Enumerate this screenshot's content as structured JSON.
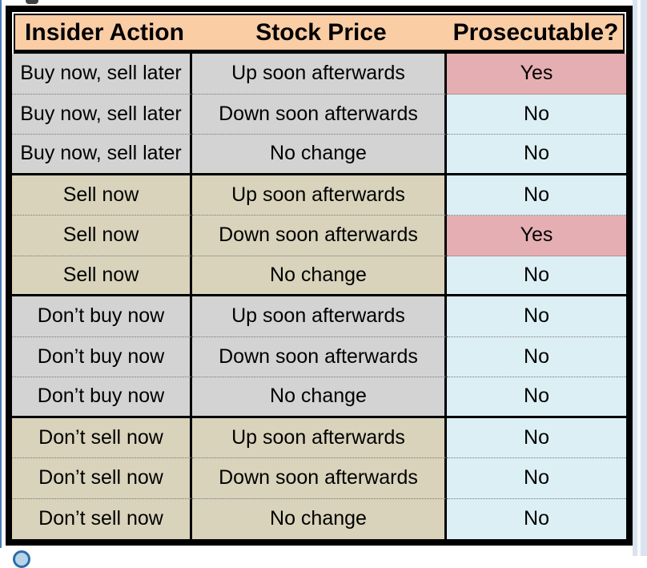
{
  "page": {
    "top_artifact": "cropped-text-fragment",
    "bottom_left_icon": "circle-badge-icon"
  },
  "table": {
    "headers": [
      "Insider Action",
      "Stock Price",
      "Prosecutable?"
    ],
    "rows": [
      {
        "action": "Buy now, sell later",
        "stock_price": "Up soon afterwards",
        "prosecutable": "Yes"
      },
      {
        "action": "Buy now, sell later",
        "stock_price": "Down soon afterwards",
        "prosecutable": "No"
      },
      {
        "action": "Buy now, sell later",
        "stock_price": "No change",
        "prosecutable": "No"
      },
      {
        "action": "Sell now",
        "stock_price": "Up soon afterwards",
        "prosecutable": "No"
      },
      {
        "action": "Sell now",
        "stock_price": "Down soon afterwards",
        "prosecutable": "Yes"
      },
      {
        "action": "Sell now",
        "stock_price": "No change",
        "prosecutable": "No"
      },
      {
        "action": "Don’t buy now",
        "stock_price": "Up soon afterwards",
        "prosecutable": "No"
      },
      {
        "action": "Don’t buy now",
        "stock_price": "Down soon afterwards",
        "prosecutable": "No"
      },
      {
        "action": "Don’t buy now",
        "stock_price": "No change",
        "prosecutable": "No"
      },
      {
        "action": "Don’t sell now",
        "stock_price": "Up soon afterwards",
        "prosecutable": "No"
      },
      {
        "action": "Don’t sell now",
        "stock_price": "Down soon afterwards",
        "prosecutable": "No"
      },
      {
        "action": "Don’t sell now",
        "stock_price": "No change",
        "prosecutable": "No"
      }
    ]
  },
  "colors": {
    "header_bg": "#FBCDA4",
    "group_gray_bg": "#D3D3D3",
    "group_tan_bg": "#D9D3BB",
    "yes_bg": "#E5AEB3",
    "no_bg": "#DCEFF4",
    "table_border": "#000000",
    "page_right_bg": "#D9E4EF",
    "edge_line_blue": "#4A7CB8"
  }
}
